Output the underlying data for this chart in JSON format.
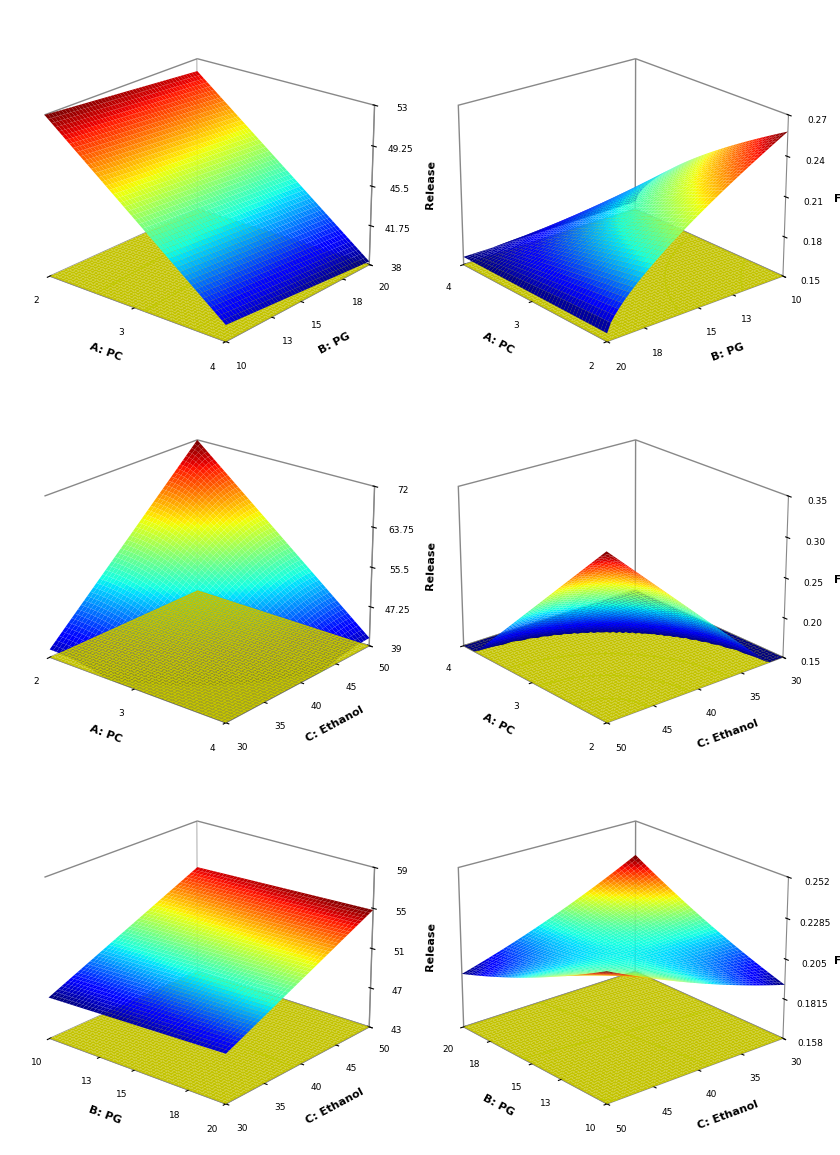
{
  "plots": [
    {
      "idx": 0,
      "xlabel": "A: PC",
      "ylabel": "B: PG",
      "zlabel": "Release",
      "xlim": [
        2,
        4
      ],
      "ylim": [
        10,
        20
      ],
      "zlim": [
        38,
        53
      ],
      "xticks": [
        2,
        3,
        4
      ],
      "yticks": [
        10,
        13,
        15,
        18,
        20
      ],
      "zticks": [
        38,
        41.75,
        45.5,
        49.25,
        53
      ],
      "ztick_labels": [
        "38",
        "41.75",
        "45.5",
        "49.25",
        "53"
      ],
      "elev": 22,
      "azim": -50,
      "surf_type": "planar_decrease_A"
    },
    {
      "idx": 1,
      "xlabel": "A: PC",
      "ylabel": "B: PG",
      "zlabel": "Flux",
      "xlim": [
        2,
        4
      ],
      "ylim": [
        10,
        20
      ],
      "zlim": [
        0.15,
        0.27
      ],
      "xticks": [
        2,
        3,
        4
      ],
      "yticks": [
        10,
        13,
        15,
        18,
        20
      ],
      "zticks": [
        0.15,
        0.18,
        0.21,
        0.24,
        0.27
      ],
      "ztick_labels": [
        "0.15",
        "0.18",
        "0.21",
        "0.24",
        "0.27"
      ],
      "elev": 22,
      "azim": -220,
      "surf_type": "curved_bowl_flux"
    },
    {
      "idx": 2,
      "xlabel": "A: PC",
      "ylabel": "C: Ethanol",
      "zlabel": "Release",
      "xlim": [
        2,
        4
      ],
      "ylim": [
        30,
        50
      ],
      "zlim": [
        39,
        72
      ],
      "xticks": [
        2,
        3,
        4
      ],
      "yticks": [
        30,
        35,
        40,
        45,
        50
      ],
      "zticks": [
        39,
        47.25,
        55.5,
        63.75,
        72
      ],
      "ztick_labels": [
        "39",
        "47.25",
        "55.5",
        "63.75",
        "72"
      ],
      "elev": 22,
      "azim": -50,
      "surf_type": "cone_low_A_high_C"
    },
    {
      "idx": 3,
      "xlabel": "A: PC",
      "ylabel": "C: Ethanol",
      "zlabel": "Flux",
      "xlim": [
        2,
        4
      ],
      "ylim": [
        30,
        50
      ],
      "zlim": [
        0.15,
        0.35
      ],
      "xticks": [
        2,
        3,
        4
      ],
      "yticks": [
        30,
        35,
        40,
        45,
        50
      ],
      "zticks": [
        0.15,
        0.2,
        0.25,
        0.3,
        0.35
      ],
      "ztick_labels": [
        "0.15",
        "0.20",
        "0.25",
        "0.30",
        "0.35"
      ],
      "elev": 22,
      "azim": -220,
      "surf_type": "cone_low_A_high_C_flux"
    },
    {
      "idx": 4,
      "xlabel": "B: PG",
      "ylabel": "C: Ethanol",
      "zlabel": "Release",
      "xlim": [
        10,
        20
      ],
      "ylim": [
        30,
        50
      ],
      "zlim": [
        43,
        59
      ],
      "xticks": [
        10,
        13,
        15,
        18,
        20
      ],
      "yticks": [
        30,
        35,
        40,
        45,
        50
      ],
      "zticks": [
        43,
        47,
        51,
        55,
        59
      ],
      "ztick_labels": [
        "43",
        "47",
        "51",
        "55",
        "59"
      ],
      "elev": 22,
      "azim": -50,
      "surf_type": "planar_BC_release"
    },
    {
      "idx": 5,
      "xlabel": "B: PG",
      "ylabel": "C: Ethanol",
      "zlabel": "Flux",
      "xlim": [
        10,
        20
      ],
      "ylim": [
        30,
        50
      ],
      "zlim": [
        0.158,
        0.252
      ],
      "xticks": [
        10,
        13,
        15,
        18,
        20
      ],
      "yticks": [
        30,
        35,
        40,
        45,
        50
      ],
      "zticks": [
        0.158,
        0.1815,
        0.205,
        0.2285,
        0.252
      ],
      "ztick_labels": [
        "0.158",
        "0.1815",
        "0.205",
        "0.2285",
        "0.252"
      ],
      "elev": 22,
      "azim": -220,
      "surf_type": "saddle_BC_flux"
    }
  ],
  "background_color": "#ffffff",
  "floor_color": "#ffff00",
  "contour_color": "#aaff00"
}
